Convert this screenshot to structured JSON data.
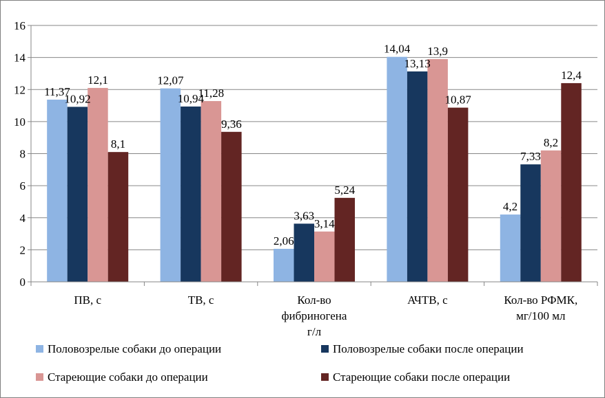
{
  "chart_data": {
    "type": "bar",
    "categories": [
      [
        "ПВ, с"
      ],
      [
        "ТВ, с"
      ],
      [
        "Кол-во",
        "фибриногена",
        "г/л"
      ],
      [
        "АЧТВ, с"
      ],
      [
        "Кол-во РФМК,",
        "мг/100 мл"
      ]
    ],
    "series": [
      {
        "name": "Половозрелые собаки до операции",
        "color": "#8EB4E3",
        "values": [
          11.37,
          12.07,
          2.06,
          14.04,
          4.2
        ],
        "labels": [
          "11,37",
          "12,07",
          "2,06",
          "14,04",
          "4,2"
        ]
      },
      {
        "name": "Половозрелые собаки после операции",
        "color": "#17375E",
        "values": [
          10.92,
          10.94,
          3.63,
          13.13,
          7.33
        ],
        "labels": [
          "10,92",
          "10,94",
          "3,63",
          "13,13",
          "7,33"
        ]
      },
      {
        "name": "Стареющие собаки до операции",
        "color": "#D99694",
        "values": [
          12.1,
          11.28,
          3.14,
          13.9,
          8.2
        ],
        "labels": [
          "12,1",
          "11,28",
          "3,14",
          "13,9",
          "8,2"
        ]
      },
      {
        "name": "Стареющие собаки после операции",
        "color": "#632523",
        "values": [
          8.1,
          9.36,
          5.24,
          10.87,
          12.4
        ],
        "labels": [
          "8,1",
          "9,36",
          "5,24",
          "10,87",
          "12,4"
        ]
      }
    ],
    "ylim": [
      0,
      16
    ],
    "yticks": [
      "0",
      "2",
      "4",
      "6",
      "8",
      "10",
      "12",
      "14",
      "16"
    ],
    "grid": true,
    "legend_position": "bottom"
  }
}
